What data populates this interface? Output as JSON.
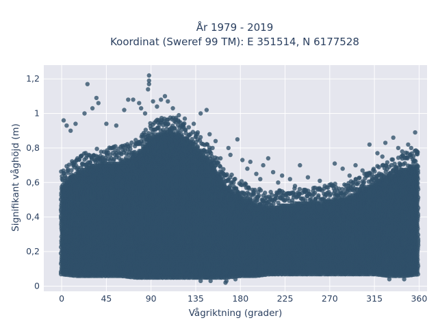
{
  "chart_data": {
    "type": "scatter",
    "title": "År 1979 - 2019",
    "subtitle": "Koordinat (Sweref 99 TM): E 351514, N 6177528",
    "xlabel": "Vågriktning (grader)",
    "ylabel": "Signifikant våghöjd (m)",
    "xlim": [
      -18,
      368
    ],
    "ylim": [
      -0.03,
      1.28
    ],
    "xticks": [
      0,
      45,
      90,
      135,
      180,
      225,
      270,
      315,
      360
    ],
    "xtick_labels": [
      "0",
      "45",
      "90",
      "135",
      "180",
      "225",
      "270",
      "315",
      "360"
    ],
    "yticks": [
      0,
      0.2,
      0.4,
      0.6,
      0.8,
      1.0,
      1.2
    ],
    "ytick_labels": [
      "0",
      "0,2",
      "0,4",
      "0,6",
      "0,8",
      "1",
      "1,2"
    ],
    "grid": true,
    "marker_color": "#2f5069",
    "background_color": "#e5e6ee",
    "envelope": {
      "description_x_deg": [
        0,
        15,
        30,
        45,
        60,
        75,
        90,
        105,
        120,
        135,
        150,
        165,
        180,
        195,
        210,
        225,
        240,
        255,
        270,
        285,
        300,
        315,
        330,
        345,
        360
      ],
      "upper_dense_m": [
        0.58,
        0.66,
        0.7,
        0.72,
        0.72,
        0.76,
        0.86,
        0.9,
        0.88,
        0.8,
        0.72,
        0.58,
        0.52,
        0.48,
        0.46,
        0.47,
        0.48,
        0.48,
        0.5,
        0.51,
        0.55,
        0.6,
        0.64,
        0.68,
        0.7
      ],
      "lower_dense_m": [
        0.07,
        0.06,
        0.06,
        0.06,
        0.06,
        0.05,
        0.05,
        0.05,
        0.05,
        0.05,
        0.05,
        0.05,
        0.06,
        0.06,
        0.07,
        0.07,
        0.07,
        0.07,
        0.07,
        0.07,
        0.07,
        0.07,
        0.06,
        0.06,
        0.07
      ]
    },
    "outliers": [
      {
        "x": 88,
        "y": 1.22
      },
      {
        "x": 88,
        "y": 1.19
      },
      {
        "x": 88,
        "y": 1.17
      },
      {
        "x": 87,
        "y": 1.14
      },
      {
        "x": 26,
        "y": 1.17
      },
      {
        "x": 35,
        "y": 1.09
      },
      {
        "x": 37,
        "y": 1.06
      },
      {
        "x": 31,
        "y": 1.03
      },
      {
        "x": 23,
        "y": 1.0
      },
      {
        "x": 67,
        "y": 1.08
      },
      {
        "x": 72,
        "y": 1.08
      },
      {
        "x": 78,
        "y": 1.06
      },
      {
        "x": 63,
        "y": 1.02
      },
      {
        "x": 92,
        "y": 1.07
      },
      {
        "x": 96,
        "y": 1.04
      },
      {
        "x": 100,
        "y": 1.08
      },
      {
        "x": 104,
        "y": 1.1
      },
      {
        "x": 107,
        "y": 1.07
      },
      {
        "x": 112,
        "y": 1.03
      },
      {
        "x": 118,
        "y": 0.99
      },
      {
        "x": 124,
        "y": 0.97
      },
      {
        "x": 140,
        "y": 1.0
      },
      {
        "x": 146,
        "y": 1.02
      },
      {
        "x": 133,
        "y": 0.94
      },
      {
        "x": 2,
        "y": 0.96
      },
      {
        "x": 5,
        "y": 0.93
      },
      {
        "x": 9,
        "y": 0.9
      },
      {
        "x": 14,
        "y": 0.94
      },
      {
        "x": 45,
        "y": 0.94
      },
      {
        "x": 55,
        "y": 0.93
      },
      {
        "x": 149,
        "y": 0.88
      },
      {
        "x": 155,
        "y": 0.84
      },
      {
        "x": 168,
        "y": 0.8
      },
      {
        "x": 177,
        "y": 0.85
      },
      {
        "x": 170,
        "y": 0.76
      },
      {
        "x": 182,
        "y": 0.73
      },
      {
        "x": 190,
        "y": 0.72
      },
      {
        "x": 187,
        "y": 0.68
      },
      {
        "x": 196,
        "y": 0.65
      },
      {
        "x": 203,
        "y": 0.7
      },
      {
        "x": 208,
        "y": 0.74
      },
      {
        "x": 213,
        "y": 0.66
      },
      {
        "x": 222,
        "y": 0.64
      },
      {
        "x": 230,
        "y": 0.62
      },
      {
        "x": 240,
        "y": 0.7
      },
      {
        "x": 248,
        "y": 0.63
      },
      {
        "x": 260,
        "y": 0.61
      },
      {
        "x": 265,
        "y": 0.58
      },
      {
        "x": 275,
        "y": 0.71
      },
      {
        "x": 283,
        "y": 0.68
      },
      {
        "x": 290,
        "y": 0.64
      },
      {
        "x": 296,
        "y": 0.7
      },
      {
        "x": 303,
        "y": 0.67
      },
      {
        "x": 307,
        "y": 0.64
      },
      {
        "x": 310,
        "y": 0.82
      },
      {
        "x": 318,
        "y": 0.77
      },
      {
        "x": 323,
        "y": 0.75
      },
      {
        "x": 326,
        "y": 0.83
      },
      {
        "x": 334,
        "y": 0.86
      },
      {
        "x": 339,
        "y": 0.8
      },
      {
        "x": 343,
        "y": 0.78
      },
      {
        "x": 349,
        "y": 0.82
      },
      {
        "x": 352,
        "y": 0.8
      },
      {
        "x": 356,
        "y": 0.89
      },
      {
        "x": 358,
        "y": 0.78
      },
      {
        "x": 160,
        "y": 0.74
      },
      {
        "x": 152,
        "y": 0.8
      },
      {
        "x": 245,
        "y": 0.55
      },
      {
        "x": 255,
        "y": 0.57
      },
      {
        "x": 218,
        "y": 0.6
      },
      {
        "x": 235,
        "y": 0.58
      },
      {
        "x": 200,
        "y": 0.62
      },
      {
        "x": 128,
        "y": 0.92
      },
      {
        "x": 137,
        "y": 0.89
      },
      {
        "x": 80,
        "y": 1.03
      },
      {
        "x": 84,
        "y": 1.0
      },
      {
        "x": 140,
        "y": 0.03
      },
      {
        "x": 150,
        "y": 0.03
      },
      {
        "x": 165,
        "y": 0.02
      },
      {
        "x": 166,
        "y": 0.03
      },
      {
        "x": 175,
        "y": 0.04
      },
      {
        "x": 145,
        "y": 0.05
      },
      {
        "x": 330,
        "y": 0.04
      },
      {
        "x": 345,
        "y": 0.04
      }
    ]
  }
}
